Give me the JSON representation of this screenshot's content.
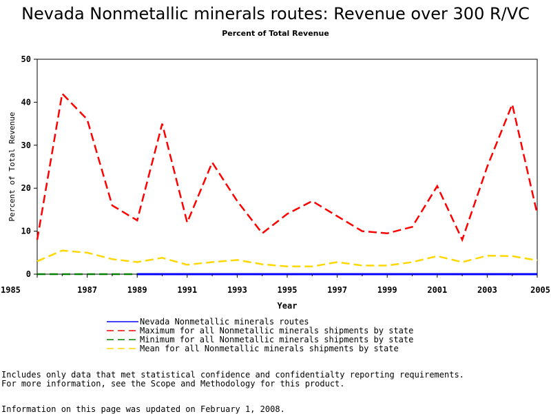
{
  "chart_data": {
    "type": "line",
    "title": "Nevada Nonmetallic minerals routes: Revenue over 300 R/VC",
    "subtitle": "Percent of Total Revenue",
    "xlabel": "Year",
    "ylabel": "Percent of Total Revenue",
    "ylim": [
      0,
      50
    ],
    "xlim": [
      1985,
      2005
    ],
    "yticks": [
      0,
      10,
      20,
      30,
      40,
      50
    ],
    "xticks": [
      1985,
      1987,
      1989,
      1991,
      1993,
      1995,
      1997,
      1999,
      2001,
      2003,
      2005
    ],
    "x": [
      1985,
      1986,
      1987,
      1988,
      1989,
      1990,
      1991,
      1992,
      1993,
      1994,
      1995,
      1996,
      1997,
      1998,
      1999,
      2000,
      2001,
      2002,
      2003,
      2004,
      2005
    ],
    "grid": false,
    "legend_placement": "bottom",
    "series": [
      {
        "name": "Nevada Nonmetallic minerals routes",
        "color": "#0000ff",
        "dash": "solid",
        "x": [
          1989,
          1990,
          1997,
          1998,
          1999,
          2000,
          2001,
          2002,
          2003,
          2004,
          2005
        ],
        "values": [
          0,
          0,
          0,
          0,
          0,
          0,
          0,
          0,
          0,
          0,
          0
        ]
      },
      {
        "name": "Maximum for all Nonmetallic minerals shipments by state",
        "color": "#ff0000",
        "dash": "dashed",
        "values": [
          8,
          42,
          36,
          16,
          12.5,
          35,
          12,
          26,
          17,
          9.5,
          14,
          17,
          13.5,
          10,
          9.5,
          11,
          20.5,
          8,
          25,
          39.5,
          14
        ]
      },
      {
        "name": "Minimum for all Nonmetallic minerals shipments by state",
        "color": "#008000",
        "dash": "dashed",
        "values": [
          0,
          0,
          0,
          0,
          0,
          0,
          0,
          0,
          0,
          0,
          0,
          0,
          0,
          0,
          0,
          0,
          0,
          0,
          0,
          0,
          0
        ]
      },
      {
        "name": "Mean for all Nonmetallic minerals shipments by state",
        "color": "#ffd700",
        "dash": "dashed",
        "values": [
          3,
          5.5,
          5,
          3.5,
          2.8,
          3.8,
          2.2,
          2.8,
          3.3,
          2.3,
          1.8,
          1.8,
          2.8,
          2,
          2,
          2.8,
          4.2,
          2.8,
          4.3,
          4.2,
          3.2
        ]
      }
    ]
  },
  "footnotes": {
    "line1": "Includes only data that met statistical confidence and confidentialty reporting requirements.",
    "line2": "For more information, see the Scope and Methodology for this product.",
    "line3": "Information on this page was updated on February 1, 2008."
  }
}
